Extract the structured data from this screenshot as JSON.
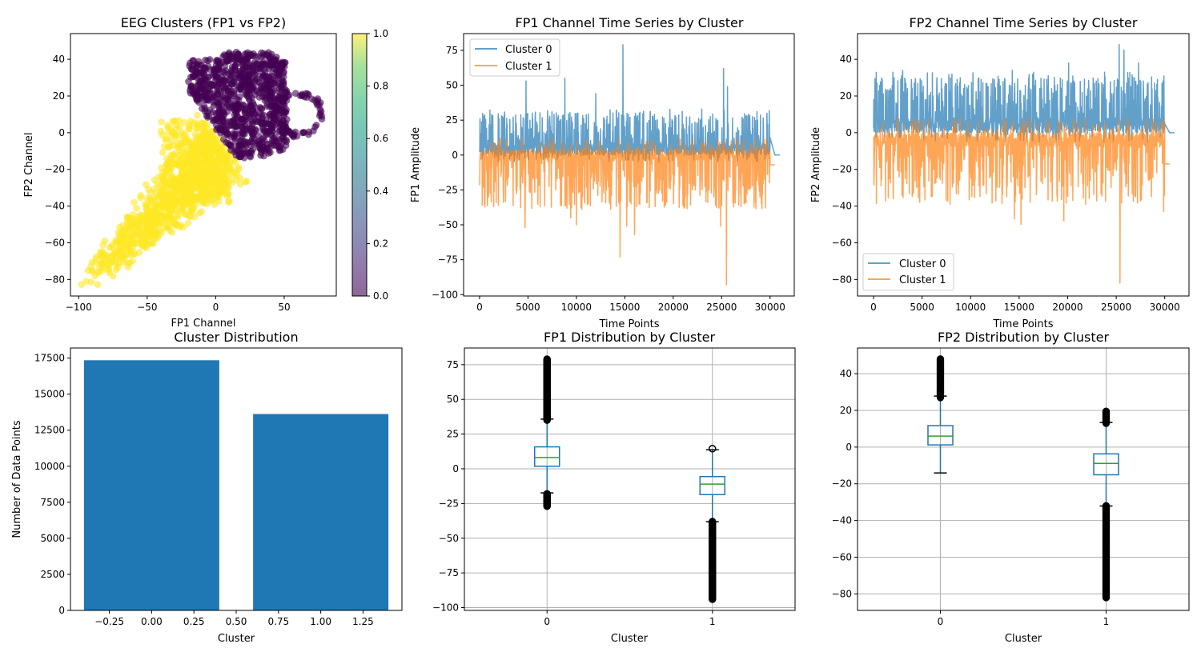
{
  "chart_data": [
    {
      "id": "scatter",
      "type": "scatter",
      "title": "EEG Clusters (FP1 vs FP2)",
      "xlabel": "FP1 Channel",
      "ylabel": "FP2 Channel",
      "xlim": [
        -106,
        88
      ],
      "ylim": [
        -89,
        54
      ],
      "xticks": [
        -100,
        -50,
        0,
        50
      ],
      "xtick_labels": [
        "−100",
        "−50",
        "0",
        "50"
      ],
      "yticks": [
        -80,
        -60,
        -40,
        -20,
        0,
        20,
        40
      ],
      "ytick_labels": [
        "−80",
        "−60",
        "−40",
        "−20",
        "0",
        "20",
        "40"
      ],
      "colormap": "viridis",
      "alpha": 0.6,
      "colorbar": {
        "range": [
          0.0,
          1.0
        ],
        "ticks": [
          0.0,
          0.2,
          0.4,
          0.6,
          0.8,
          1.0
        ],
        "tick_labels": [
          "0.0",
          "0.2",
          "0.4",
          "0.6",
          "0.8",
          "1.0"
        ]
      },
      "series": [
        {
          "name": "Cluster 0",
          "cluster": 0,
          "color": "#440154",
          "approx_region": {
            "fp1_range": [
              -28,
              78
            ],
            "fp2_range": [
              -15,
              48
            ]
          }
        },
        {
          "name": "Cluster 1",
          "cluster": 1,
          "color": "#fde725",
          "approx_region": {
            "fp1_range": [
              -94,
              15
            ],
            "fp2_range": [
              -82,
              20
            ]
          }
        }
      ]
    },
    {
      "id": "fp1-ts",
      "type": "line",
      "title": "FP1 Channel Time Series by Cluster",
      "xlabel": "Time Points",
      "ylabel": "FP1 Amplitude",
      "xlim": [
        -1650,
        32500
      ],
      "ylim": [
        -101,
        87
      ],
      "xticks": [
        0,
        5000,
        10000,
        15000,
        20000,
        25000,
        30000
      ],
      "xtick_labels": [
        "0",
        "5000",
        "10000",
        "15000",
        "20000",
        "25000",
        "30000"
      ],
      "yticks": [
        -100,
        -75,
        -50,
        -25,
        0,
        25,
        50,
        75
      ],
      "ytick_labels": [
        "−100",
        "−75",
        "−50",
        "−25",
        "0",
        "25",
        "50",
        "75"
      ],
      "legend": "top-left",
      "series": [
        {
          "name": "Cluster 0",
          "color": "#1f77b4",
          "x_end": 31000,
          "typical_range": [
            -5,
            30
          ],
          "peaks": [
            [
              4800,
              53
            ],
            [
              8800,
              55
            ],
            [
              12000,
              44
            ],
            [
              14800,
              79
            ],
            [
              25200,
              62
            ],
            [
              25600,
              49
            ]
          ],
          "tail": 0
        },
        {
          "name": "Cluster 1",
          "color": "#ff7f0e",
          "x_end": 30500,
          "typical_range": [
            -30,
            12
          ],
          "troughs": [
            [
              4700,
              -52
            ],
            [
              9400,
              -45
            ],
            [
              10000,
              -50
            ],
            [
              14500,
              -73
            ],
            [
              15200,
              -51
            ],
            [
              16000,
              -57
            ],
            [
              24900,
              -51
            ],
            [
              25500,
              -93
            ]
          ],
          "tail": -7
        }
      ]
    },
    {
      "id": "fp2-ts",
      "type": "line",
      "title": "FP2 Channel Time Series by Cluster",
      "xlabel": "Time Points",
      "ylabel": "FP2 Amplitude",
      "xlim": [
        -1650,
        32500
      ],
      "ylim": [
        -89,
        54
      ],
      "xticks": [
        0,
        5000,
        10000,
        15000,
        20000,
        25000,
        30000
      ],
      "xtick_labels": [
        "0",
        "5000",
        "10000",
        "15000",
        "20000",
        "25000",
        "30000"
      ],
      "yticks": [
        -80,
        -60,
        -40,
        -20,
        0,
        20,
        40
      ],
      "ytick_labels": [
        "−80",
        "−60",
        "−40",
        "−20",
        "0",
        "20",
        "40"
      ],
      "legend": "bottom-left",
      "series": [
        {
          "name": "Cluster 0",
          "color": "#1f77b4",
          "x_end": 31000,
          "typical_range": [
            -5,
            30
          ],
          "peaks": [
            [
              2000,
              33
            ],
            [
              3000,
              34
            ],
            [
              14300,
              34
            ],
            [
              16500,
              33
            ],
            [
              20100,
              38
            ],
            [
              25300,
              48
            ],
            [
              25800,
              45
            ],
            [
              27300,
              38
            ]
          ],
          "tail": 0
        },
        {
          "name": "Cluster 1",
          "color": "#ff7f0e",
          "x_end": 30500,
          "typical_range": [
            -30,
            8
          ],
          "troughs": [
            [
              14500,
              -47
            ],
            [
              15200,
              -50
            ],
            [
              19600,
              -48
            ],
            [
              25400,
              -82
            ],
            [
              29900,
              -43
            ]
          ],
          "tail": -17
        }
      ]
    },
    {
      "id": "cluster-dist",
      "type": "bar",
      "title": "Cluster Distribution",
      "xlabel": "Cluster",
      "ylabel": "Number of Data Points",
      "categories": [
        0,
        1
      ],
      "values": [
        17350,
        13620
      ],
      "color": "#1f77b4",
      "xlim": [
        -0.48,
        1.48
      ],
      "ylim": [
        0,
        18200
      ],
      "xticks": [
        -0.25,
        0.0,
        0.25,
        0.5,
        0.75,
        1.0,
        1.25
      ],
      "xtick_labels": [
        "−0.25",
        "0.00",
        "0.25",
        "0.50",
        "0.75",
        "1.00",
        "1.25"
      ],
      "yticks": [
        0,
        2500,
        5000,
        7500,
        10000,
        12500,
        15000,
        17500
      ],
      "ytick_labels": [
        "0",
        "2500",
        "5000",
        "7500",
        "10000",
        "12500",
        "15000",
        "17500"
      ]
    },
    {
      "id": "fp1-box",
      "type": "box",
      "title": "FP1 Distribution by Cluster",
      "xlabel": "Cluster",
      "ylabel": "",
      "grid": true,
      "categories": [
        "0",
        "1"
      ],
      "ylim": [
        -102,
        87
      ],
      "yticks": [
        -100,
        -75,
        -50,
        -25,
        0,
        25,
        50,
        75
      ],
      "ytick_labels": [
        "−100",
        "−75",
        "−50",
        "−25",
        "0",
        "25",
        "50",
        "75"
      ],
      "boxes": [
        {
          "q1": 1.8,
          "median": 8.1,
          "q3": 15.8,
          "whisker_low": -17.4,
          "whisker_high": 35.8,
          "outliers_low": [
            -27,
            -18
          ],
          "outliers_high": [
            35,
            79
          ]
        },
        {
          "q1": -18.6,
          "median": -11,
          "q3": -5.6,
          "whisker_low": -38.1,
          "whisker_high": 13.7,
          "outliers_low": [
            -94,
            -38
          ],
          "outliers_high": [
            14.5,
            14.5
          ]
        }
      ]
    },
    {
      "id": "fp2-box",
      "type": "box",
      "title": "FP2 Distribution by Cluster",
      "xlabel": "Cluster",
      "ylabel": "",
      "grid": true,
      "categories": [
        "0",
        "1"
      ],
      "ylim": [
        -89,
        54
      ],
      "yticks": [
        -80,
        -60,
        -40,
        -20,
        0,
        20,
        40
      ],
      "ytick_labels": [
        "−80",
        "−60",
        "−40",
        "−20",
        "0",
        "20",
        "40"
      ],
      "boxes": [
        {
          "q1": 1.2,
          "median": 6.0,
          "q3": 11.7,
          "whisker_low": -14.1,
          "whisker_high": 27.8,
          "outliers_low": [],
          "outliers_high": [
            27,
            48
          ]
        },
        {
          "q1": -15.1,
          "median": -8.9,
          "q3": -3.7,
          "whisker_low": -32.1,
          "whisker_high": 13.4,
          "outliers_low": [
            -82,
            -32
          ],
          "outliers_high": [
            13,
            19.5
          ]
        }
      ]
    }
  ]
}
